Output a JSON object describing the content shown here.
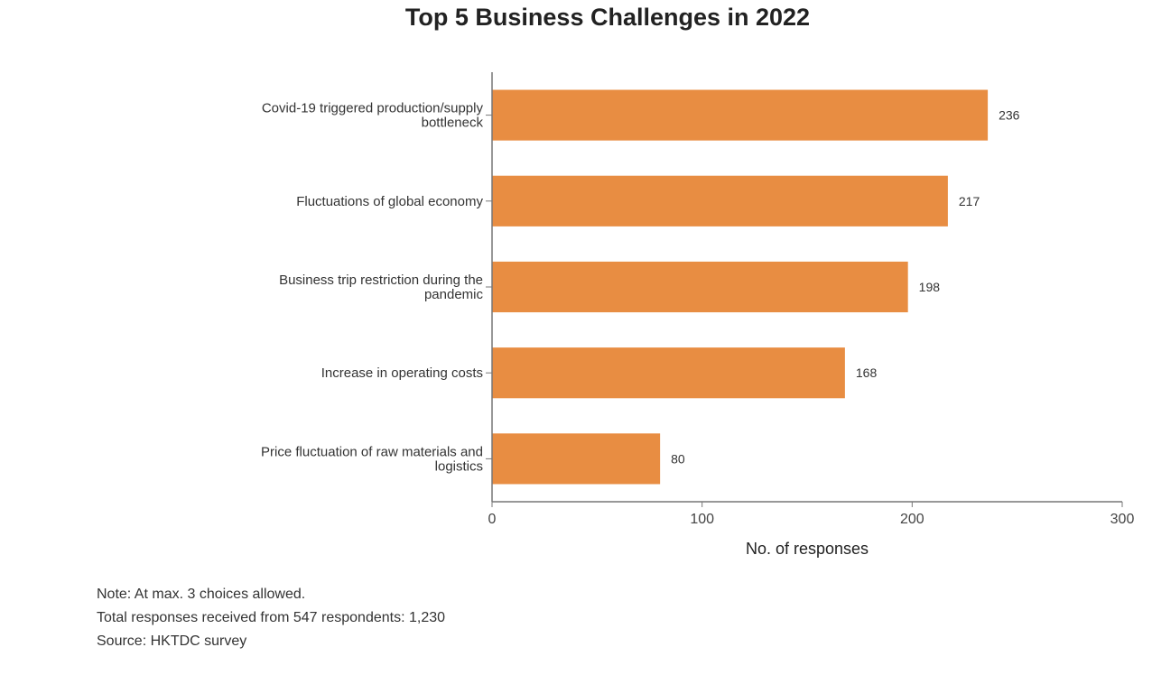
{
  "chart_data": {
    "type": "bar",
    "orientation": "horizontal",
    "title": "Top 5 Business Challenges in 2022",
    "categories": [
      [
        "Covid-19 triggered production/supply",
        "bottleneck"
      ],
      [
        "Fluctuations of global economy"
      ],
      [
        "Business trip restriction during the",
        "pandemic"
      ],
      [
        "Increase in operating costs"
      ],
      [
        "Price fluctuation of raw materials and",
        "logistics"
      ]
    ],
    "values": [
      236,
      217,
      198,
      168,
      80
    ],
    "xlabel": "No. of responses",
    "ylabel": "",
    "xlim": [
      0,
      300
    ],
    "xticks": [
      0,
      100,
      200,
      300
    ],
    "grid": false,
    "bar_color": "#E88D42",
    "notes": [
      "Note: At max. 3 choices allowed.",
      "Total responses received from 547 respondents: 1,230",
      "Source: HKTDC survey"
    ]
  }
}
